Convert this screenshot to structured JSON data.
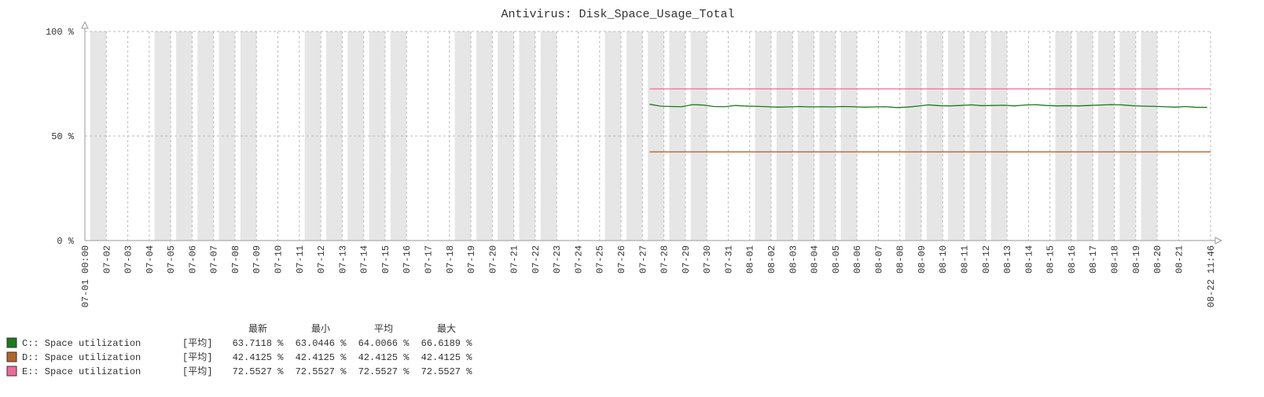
{
  "chart_data": {
    "type": "line",
    "title": "Antivirus: Disk_Space_Usage_Total",
    "xlim": [
      "07-01 00:00",
      "08-22 11:46"
    ],
    "xticks": [
      "07-01 00:00",
      "07-02",
      "07-03",
      "07-04",
      "07-05",
      "07-06",
      "07-07",
      "07-08",
      "07-09",
      "07-10",
      "07-11",
      "07-12",
      "07-13",
      "07-14",
      "07-15",
      "07-16",
      "07-17",
      "07-18",
      "07-19",
      "07-20",
      "07-21",
      "07-22",
      "07-23",
      "07-24",
      "07-25",
      "07-26",
      "07-27",
      "07-28",
      "07-29",
      "07-30",
      "07-31",
      "08-01",
      "08-02",
      "08-03",
      "08-04",
      "08-05",
      "08-06",
      "08-07",
      "08-08",
      "08-09",
      "08-10",
      "08-11",
      "08-12",
      "08-13",
      "08-14",
      "08-15",
      "08-16",
      "08-17",
      "08-18",
      "08-19",
      "08-20",
      "08-21",
      "08-22 11:46"
    ],
    "xtick_colors": [
      "#e05050",
      "#333",
      "#e05050",
      "#333",
      "#333",
      "#333",
      "#333",
      "#333",
      "#333",
      "#e05050",
      "#333",
      "#333",
      "#333",
      "#333",
      "#333",
      "#333",
      "#e05050",
      "#333",
      "#333",
      "#333",
      "#333",
      "#333",
      "#333",
      "#e05050",
      "#333",
      "#333",
      "#333",
      "#333",
      "#333",
      "#333",
      "#e05050",
      "#333",
      "#333",
      "#333",
      "#333",
      "#333",
      "#333",
      "#e05050",
      "#333",
      "#333",
      "#333",
      "#333",
      "#333",
      "#333",
      "#e05050",
      "#333",
      "#333",
      "#333",
      "#333",
      "#333",
      "#333",
      "#e05050",
      "#e05050"
    ],
    "ylim": [
      0,
      100
    ],
    "yticks": [
      {
        "value": 0,
        "label": "0 %"
      },
      {
        "value": 50,
        "label": "50 %"
      },
      {
        "value": 100,
        "label": "100 %"
      }
    ],
    "grid": true,
    "series": [
      {
        "name": "C:: Space utilization",
        "color": "#1a7a1a",
        "x": [
          "07-27 08:00",
          "07-27 20:00",
          "07-28 08:00",
          "07-28 20:00",
          "07-29 08:00",
          "07-29 20:00",
          "07-30 08:00",
          "07-30 20:00",
          "07-31 08:00",
          "07-31 20:00",
          "08-01 08:00",
          "08-01 20:00",
          "08-02 08:00",
          "08-02 20:00",
          "08-03 08:00",
          "08-03 20:00",
          "08-04 08:00",
          "08-04 20:00",
          "08-05 08:00",
          "08-05 20:00",
          "08-06 08:00",
          "08-06 20:00",
          "08-07 08:00",
          "08-07 20:00",
          "08-08 08:00",
          "08-08 20:00",
          "08-09 08:00",
          "08-09 20:00",
          "08-10 08:00",
          "08-10 20:00",
          "08-11 08:00",
          "08-11 20:00",
          "08-12 08:00",
          "08-12 20:00",
          "08-13 08:00",
          "08-13 20:00",
          "08-14 08:00",
          "08-14 20:00",
          "08-15 08:00",
          "08-15 20:00",
          "08-16 08:00",
          "08-16 20:00",
          "08-17 08:00",
          "08-17 20:00",
          "08-18 08:00",
          "08-18 20:00",
          "08-19 08:00",
          "08-19 20:00",
          "08-20 08:00",
          "08-20 20:00",
          "08-21 08:00",
          "08-21 20:00",
          "08-22 08:00"
        ],
        "values": [
          65.2,
          64.3,
          64.1,
          64.0,
          65.0,
          64.8,
          64.1,
          64.0,
          64.6,
          64.3,
          64.2,
          64.0,
          63.8,
          63.9,
          64.1,
          63.9,
          64.0,
          63.9,
          64.1,
          64.0,
          63.8,
          63.9,
          64.0,
          63.6,
          63.8,
          64.3,
          64.9,
          64.5,
          64.4,
          64.6,
          64.9,
          64.5,
          64.6,
          64.7,
          64.4,
          64.8,
          65.0,
          64.6,
          64.4,
          64.5,
          64.4,
          64.6,
          64.8,
          65.0,
          64.9,
          64.5,
          64.3,
          64.2,
          64.0,
          63.8,
          64.1,
          63.7,
          63.7
        ]
      },
      {
        "name": "D:: Space utilization",
        "color": "#b5652a",
        "x": [
          "07-27 08:00",
          "08-22 11:46"
        ],
        "values": [
          42.4125,
          42.4125
        ]
      },
      {
        "name": "E:: Space utilization",
        "color": "#ee6a9a",
        "x": [
          "07-27 08:00",
          "08-22 11:46"
        ],
        "values": [
          72.5527,
          72.5527
        ]
      }
    ],
    "legend_table": {
      "headers": [
        "最新",
        "最小",
        "平均",
        "最大"
      ],
      "rows": [
        [
          "C:: Space utilization",
          "[平均]",
          "63.7118 %",
          "63.0446 %",
          "64.0066 %",
          "66.6189 %"
        ],
        [
          "D:: Space utilization",
          "[平均]",
          "42.4125 %",
          "42.4125 %",
          "42.4125 %",
          "42.4125 %"
        ],
        [
          "E:: Space utilization",
          "[平均]",
          "72.5527 %",
          "72.5527 %",
          "72.5527 %",
          "72.5527 %"
        ]
      ]
    }
  }
}
